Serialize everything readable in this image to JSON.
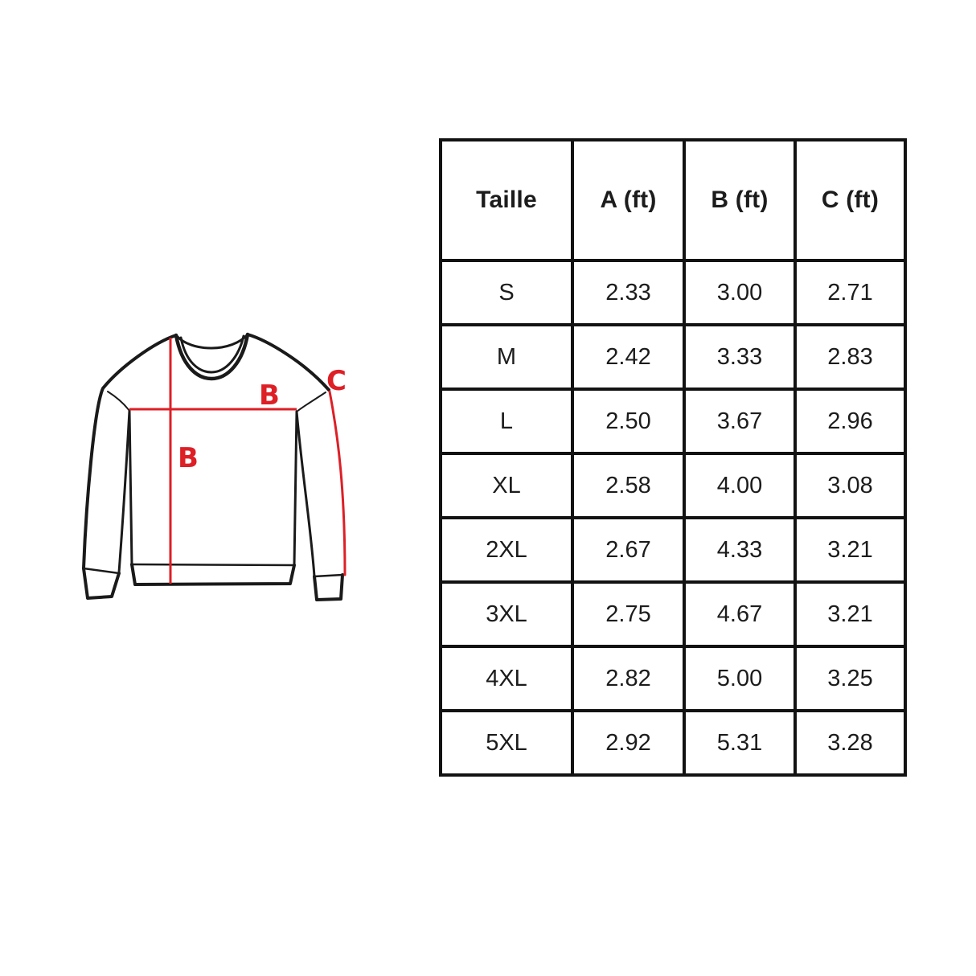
{
  "diagram": {
    "garment": "crew-neck-sweatshirt-outline",
    "measure_labels": {
      "chest": "B",
      "length": "B",
      "sleeve": "C"
    },
    "colors": {
      "measure_line": "#dd1f26",
      "outline": "#1a1a1a"
    }
  },
  "table": {
    "headers": [
      "Taille",
      "A (ft)",
      "B (ft)",
      "C (ft)"
    ],
    "rows": [
      [
        "S",
        "2.33",
        "3.00",
        "2.71"
      ],
      [
        "M",
        "2.42",
        "3.33",
        "2.83"
      ],
      [
        "L",
        "2.50",
        "3.67",
        "2.96"
      ],
      [
        "XL",
        "2.58",
        "4.00",
        "3.08"
      ],
      [
        "2XL",
        "2.67",
        "4.33",
        "3.21"
      ],
      [
        "3XL",
        "2.75",
        "4.67",
        "3.21"
      ],
      [
        "4XL",
        "2.82",
        "5.00",
        "3.25"
      ],
      [
        "5XL",
        "2.92",
        "5.31",
        "3.28"
      ]
    ]
  }
}
